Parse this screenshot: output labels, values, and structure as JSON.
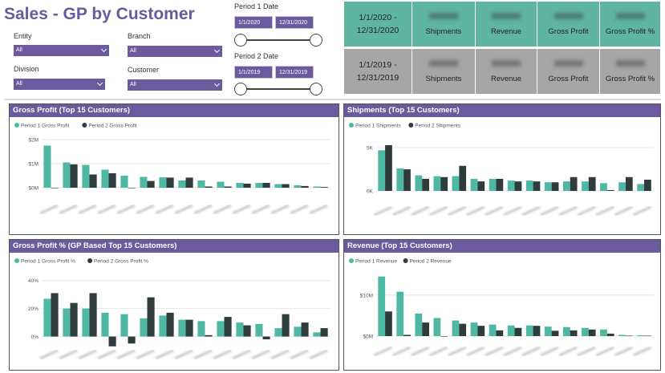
{
  "title": "Sales - GP by Customer",
  "filters": {
    "entity": {
      "label": "Entity",
      "value": "All"
    },
    "branch": {
      "label": "Branch",
      "value": "All"
    },
    "division": {
      "label": "Division",
      "value": "All"
    },
    "customer": {
      "label": "Customer",
      "value": "All"
    }
  },
  "period1": {
    "label": "Period 1 Date",
    "start": "1/1/2020",
    "end": "12/31/2020"
  },
  "period2": {
    "label": "Period 2 Date",
    "start": "1/1/2019",
    "end": "12/31/2019"
  },
  "kpi": {
    "row1": {
      "range": "1/1/2020 - 12/31/2020",
      "color": "#5fb5a0"
    },
    "row2": {
      "range": "1/1/2019 - 12/31/2019",
      "color": "#a6a6a6"
    },
    "labels": [
      "Shipments",
      "Revenue",
      "Gross Profit",
      "Gross Profit %"
    ]
  },
  "colors": {
    "p1": "#4fb8a4",
    "p2": "#2f3c3c",
    "accent": "#6b5a9e"
  },
  "charts": {
    "gp": {
      "title": "Gross Profit (Top 15 Customers)",
      "legend": [
        "Period 1 Gross Profit",
        "Period 2 Gross Profit"
      ],
      "ticks": [
        "$2M",
        "$1M",
        "$0M"
      ]
    },
    "ship": {
      "title": "Shipments (Top 15 Customers)",
      "legend": [
        "Period 1 Shipments",
        "Period 2 Shipments"
      ],
      "ticks": [
        "5K",
        "0K"
      ]
    },
    "gpp": {
      "title": "Gross Profit % (GP Based Top 15 Customers)",
      "legend": [
        "Period 1 Gross Profit %",
        "Period 2 Gross Profit %"
      ],
      "ticks": [
        "40%",
        "20%",
        "0%"
      ]
    },
    "rev": {
      "title": "Revenue (Top 15 Customers)",
      "legend": [
        "Period 1 Revenue",
        "Period 2 Revenue"
      ],
      "ticks": [
        "$10M",
        "$0M"
      ]
    }
  },
  "chart_data": [
    {
      "type": "bar",
      "title": "Gross Profit (Top 15 Customers)",
      "series": [
        {
          "name": "Period 1 Gross Profit",
          "values": [
            1.75,
            1.05,
            0.95,
            0.75,
            0.5,
            0.45,
            0.43,
            0.3,
            0.3,
            0.25,
            0.2,
            0.2,
            0.15,
            0.1,
            0.05
          ]
        },
        {
          "name": "Period 2 Gross Profit",
          "values": [
            0.0,
            0.97,
            0.55,
            0.6,
            0.0,
            0.28,
            0.42,
            0.42,
            0.05,
            0.05,
            0.17,
            0.2,
            0.15,
            0.07,
            0.03
          ]
        }
      ],
      "ylim": [
        0,
        2.2
      ]
    },
    {
      "type": "bar",
      "title": "Shipments (Top 15 Customers)",
      "series": [
        {
          "name": "Period 1 Shipments",
          "values": [
            4.7,
            2.6,
            1.8,
            1.7,
            1.7,
            1.4,
            1.4,
            1.2,
            1.2,
            1.0,
            1.1,
            1.1,
            0.9,
            1.0,
            0.8
          ]
        },
        {
          "name": "Period 2 Shipments",
          "values": [
            5.3,
            2.5,
            1.4,
            1.6,
            2.9,
            1.1,
            1.4,
            1.1,
            1.1,
            1.0,
            1.6,
            1.6,
            0.1,
            1.6,
            1.3
          ]
        }
      ],
      "ylim": [
        0,
        6.5
      ]
    },
    {
      "type": "bar",
      "title": "Gross Profit % (GP Based Top 15 Customers)",
      "series": [
        {
          "name": "Period 1 Gross Profit %",
          "values": [
            27,
            20,
            20,
            17,
            16,
            13,
            15,
            12,
            11,
            11,
            10,
            9,
            6,
            7,
            3
          ]
        },
        {
          "name": "Period 2 Gross Profit %",
          "values": [
            31,
            24,
            31,
            -7,
            -5,
            28,
            17,
            12,
            1,
            14,
            8,
            -2,
            16,
            10,
            6
          ]
        }
      ],
      "ylim": [
        -10,
        45
      ]
    },
    {
      "type": "bar",
      "title": "Revenue (Top 15 Customers)",
      "series": [
        {
          "name": "Period 1 Revenue",
          "values": [
            14.5,
            10.8,
            5.5,
            4.4,
            3.8,
            3.3,
            2.8,
            2.6,
            2.6,
            2.3,
            2.2,
            2.0,
            1.6,
            0.3,
            0.2
          ]
        },
        {
          "name": "Period 2 Revenue",
          "values": [
            6.0,
            0.3,
            3.3,
            0.0,
            3.0,
            2.5,
            1.4,
            2.0,
            2.5,
            1.3,
            1.4,
            1.6,
            0.6,
            0.1,
            0.1
          ]
        }
      ],
      "ylim": [
        0,
        16
      ]
    }
  ]
}
